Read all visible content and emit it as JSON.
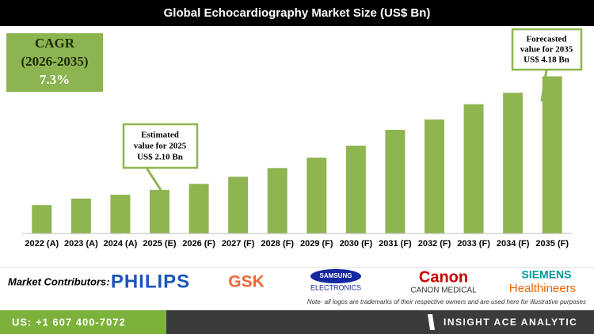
{
  "chart_data": {
    "type": "bar",
    "title": "Global Echocardiography Market Size (US$ Bn)",
    "categories": [
      "2022 (A)",
      "2023 (A)",
      "2024 (A)",
      "2025 (E)",
      "2026 (F)",
      "2027 (F)",
      "2028 (F)",
      "2029 (F)",
      "2030 (F)",
      "2031 (F)",
      "2032 (F)",
      "2033 (F)",
      "2034 (F)",
      "2035 (F)"
    ],
    "values": [
      1.82,
      1.94,
      2.01,
      2.1,
      2.21,
      2.34,
      2.5,
      2.69,
      2.91,
      3.2,
      3.39,
      3.67,
      3.88,
      4.18
    ],
    "color": "#8fb551",
    "ylim": [
      1.3,
      5.0
    ],
    "annotations": [
      {
        "lines": [
          "Estimated",
          "value for 2025",
          "US$ 2.10 Bn"
        ]
      },
      {
        "lines": [
          "Forecasted",
          "value for 2035",
          "US$ 4.18 Bn"
        ]
      }
    ]
  },
  "cagr": {
    "label": "CAGR",
    "period": "(2026-2035)",
    "value": "7.3%"
  },
  "contributors": {
    "label": "Market Contributors:",
    "logos": [
      "PHILIPS",
      "GSK",
      "SAMSUNG",
      "ELECTRONICS",
      "Canon",
      "CANON MEDICAL",
      "SIEMENS",
      "Healthineers"
    ],
    "note": "Note- all logos are trademarks of their respective owners and are used here for illustrative purposes"
  },
  "footer": {
    "phone": "US: +1 607 400-7072",
    "brand": "INSIGHT ACE ANALYTIC"
  }
}
